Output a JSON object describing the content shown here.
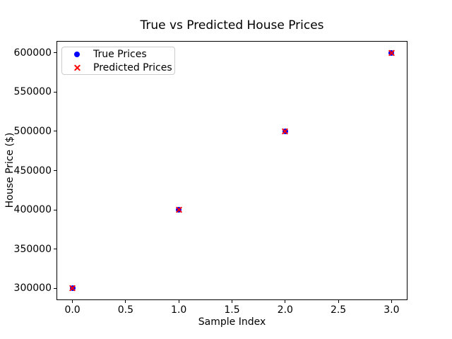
{
  "figure": {
    "title": "True vs Predicted House Prices",
    "xlabel": "Sample Index",
    "ylabel": "House Price ($)"
  },
  "colors": {
    "true_series": "#0000ff",
    "predicted_series": "#ff0000",
    "spine": "#000000",
    "legend_border": "#cccccc",
    "background": "#ffffff"
  },
  "legend": {
    "items": [
      {
        "label": "True Prices",
        "marker": "circle",
        "color": "#0000ff"
      },
      {
        "label": "Predicted Prices",
        "marker": "x",
        "color": "#ff0000"
      }
    ]
  },
  "chart_data": {
    "type": "scatter",
    "title": "True vs Predicted House Prices",
    "xlabel": "Sample Index",
    "ylabel": "House Price ($)",
    "xlim": [
      -0.15,
      3.15
    ],
    "ylim": [
      285000,
      615000
    ],
    "x_ticks": [
      0.0,
      0.5,
      1.0,
      1.5,
      2.0,
      2.5,
      3.0
    ],
    "x_tick_labels": [
      "0.0",
      "0.5",
      "1.0",
      "1.5",
      "2.0",
      "2.5",
      "3.0"
    ],
    "y_ticks": [
      300000,
      350000,
      400000,
      450000,
      500000,
      550000,
      600000
    ],
    "y_tick_labels": [
      "300000",
      "350000",
      "400000",
      "450000",
      "500000",
      "550000",
      "600000"
    ],
    "grid": false,
    "legend_position": "upper left",
    "series": [
      {
        "name": "True Prices",
        "marker": "circle",
        "color": "#0000ff",
        "x": [
          0,
          1,
          2,
          3
        ],
        "y": [
          300000,
          400000,
          500000,
          600000
        ]
      },
      {
        "name": "Predicted Prices",
        "marker": "x",
        "color": "#ff0000",
        "x": [
          0,
          1,
          2,
          3
        ],
        "y": [
          300000,
          400000,
          500000,
          600000
        ]
      }
    ]
  }
}
